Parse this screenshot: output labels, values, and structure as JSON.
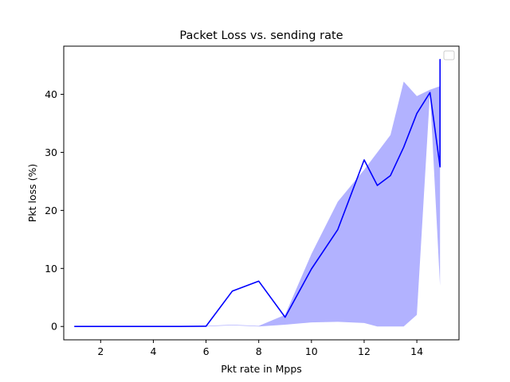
{
  "chart_data": {
    "type": "line",
    "title": "Packet Loss vs. sending rate",
    "xlabel": "Pkt rate in Mpps",
    "ylabel": "Pkt loss (%)",
    "xlim": [
      0.6,
      15.6
    ],
    "ylim": [
      -2.3,
      48.3
    ],
    "xticks": [
      2,
      4,
      6,
      8,
      10,
      12,
      14
    ],
    "yticks": [
      0,
      10,
      20,
      30,
      40
    ],
    "grid": false,
    "legend": {
      "placement": "top-right",
      "entries": []
    },
    "series": [
      {
        "style": "line",
        "color": "#0000ff",
        "x": [
          1,
          2,
          3,
          4,
          5,
          6,
          7,
          8,
          9,
          10,
          11,
          12,
          12.5,
          13,
          13.5,
          14,
          14.5,
          14.88,
          14.88,
          14.88
        ],
        "y": [
          0,
          0,
          0,
          0,
          0,
          0.05,
          6.1,
          7.8,
          1.6,
          9.9,
          16.7,
          28.7,
          24.3,
          26.0,
          30.9,
          36.7,
          40.3,
          27.5,
          46.0,
          27.5
        ]
      }
    ],
    "band": {
      "color": "#0000ff",
      "opacity": 0.3,
      "x": [
        1,
        2,
        3,
        4,
        5,
        6,
        7,
        8,
        9,
        10,
        11,
        12,
        12.5,
        13,
        13.5,
        14,
        14.5,
        14.88
      ],
      "lower": [
        0,
        0,
        0,
        0,
        0,
        0,
        0.2,
        0,
        0.3,
        0.7,
        0.8,
        0.6,
        0,
        0,
        0,
        2.0,
        40.3,
        7.0
      ],
      "upper": [
        0,
        0,
        0,
        0,
        0,
        0.1,
        0.3,
        0.1,
        2.0,
        12.5,
        21.5,
        27.0,
        30.0,
        33.0,
        42.2,
        39.7,
        40.8,
        41.4
      ]
    }
  }
}
